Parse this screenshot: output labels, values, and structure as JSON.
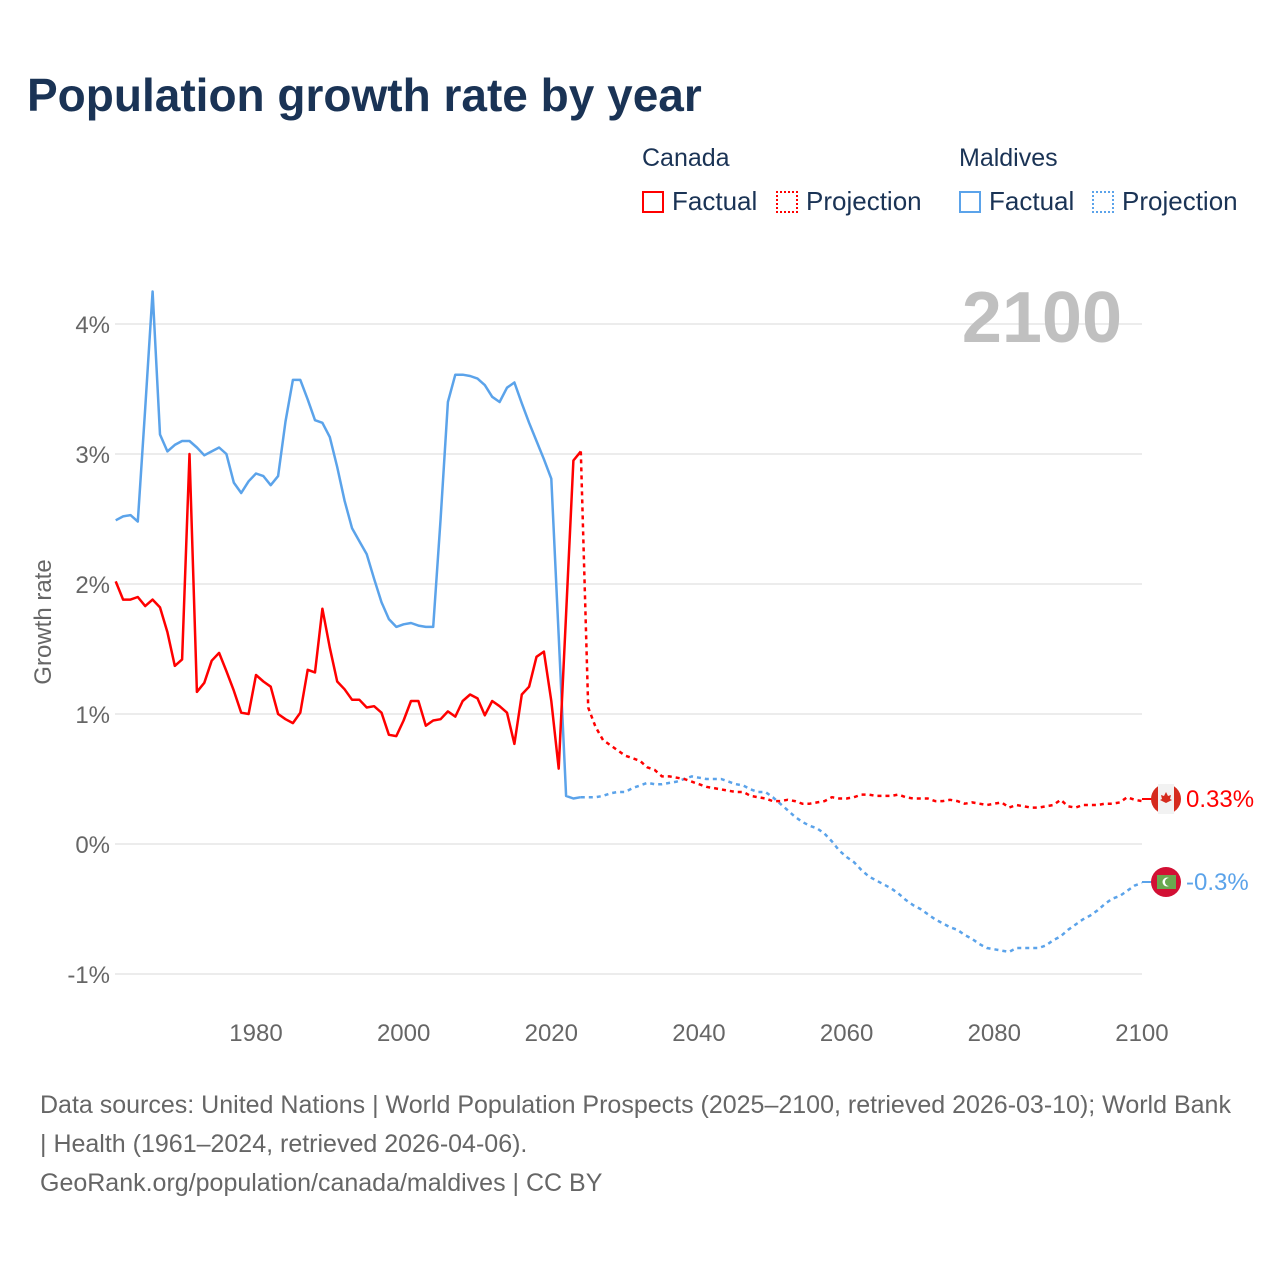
{
  "title": "Population growth rate by year",
  "legend": {
    "groups": [
      {
        "name": "Canada",
        "color": "#ff0000",
        "factual_label": "Factual",
        "projection_label": "Projection"
      },
      {
        "name": "Maldives",
        "color": "#5ba3ea",
        "factual_label": "Factual",
        "projection_label": "Projection"
      }
    ]
  },
  "year_display": "2100",
  "end_labels": {
    "canada": "0.33%",
    "maldives": "-0.3%"
  },
  "footer": {
    "sources": "Data sources: United Nations | World Population Prospects (2025–2100, retrieved 2026-03-10); World Bank | Health (1961–2024, retrieved 2026-04-06).",
    "link": "GeoRank.org/population/canada/maldives | CC BY"
  },
  "chart_data": {
    "type": "line",
    "title": "Population growth rate by year",
    "xlabel": "",
    "ylabel": "Growth rate",
    "xlim": [
      1961,
      2100
    ],
    "ylim": [
      -1.3,
      4.4
    ],
    "xticks": [
      1980,
      2000,
      2020,
      2040,
      2060,
      2080,
      2100
    ],
    "yticks": [
      -1,
      0,
      1,
      2,
      3,
      4
    ],
    "ytick_labels": [
      "-1%",
      "0%",
      "1%",
      "2%",
      "3%",
      "4%"
    ],
    "grid": true,
    "legend_position": "top-right",
    "series": [
      {
        "name": "Canada Factual",
        "color": "#ff0000",
        "dashed": false,
        "x_start": 1961,
        "values": [
          2.02,
          1.88,
          1.88,
          1.9,
          1.83,
          1.88,
          1.82,
          1.63,
          1.37,
          1.42,
          3.0,
          1.17,
          1.24,
          1.41,
          1.47,
          1.33,
          1.18,
          1.01,
          1.0,
          1.3,
          1.25,
          1.21,
          1.0,
          0.96,
          0.93,
          1.01,
          1.34,
          1.32,
          1.81,
          1.51,
          1.25,
          1.19,
          1.11,
          1.11,
          1.05,
          1.06,
          1.01,
          0.84,
          0.83,
          0.95,
          1.1,
          1.1,
          0.91,
          0.95,
          0.96,
          1.02,
          0.98,
          1.1,
          1.15,
          1.12,
          0.99,
          1.1,
          1.06,
          1.01,
          0.77,
          1.15,
          1.21,
          1.44,
          1.48,
          1.1,
          0.58,
          1.77,
          2.95,
          3.02
        ]
      },
      {
        "name": "Canada Projection",
        "color": "#ff0000",
        "dashed": true,
        "x_start": 2024,
        "values": [
          3.02,
          1.05,
          0.9,
          0.8,
          0.76,
          0.72,
          0.68,
          0.66,
          0.64,
          0.59,
          0.57,
          0.52,
          0.52,
          0.51,
          0.5,
          0.48,
          0.46,
          0.44,
          0.43,
          0.42,
          0.41,
          0.4,
          0.4,
          0.37,
          0.36,
          0.35,
          0.33,
          0.33,
          0.34,
          0.33,
          0.31,
          0.31,
          0.32,
          0.33,
          0.36,
          0.35,
          0.35,
          0.36,
          0.38,
          0.38,
          0.37,
          0.37,
          0.37,
          0.38,
          0.36,
          0.35,
          0.35,
          0.35,
          0.33,
          0.33,
          0.34,
          0.33,
          0.31,
          0.32,
          0.31,
          0.3,
          0.31,
          0.32,
          0.28,
          0.3,
          0.29,
          0.28,
          0.28,
          0.29,
          0.3,
          0.34,
          0.29,
          0.28,
          0.3,
          0.3,
          0.3,
          0.31,
          0.31,
          0.32,
          0.36,
          0.34,
          0.33
        ]
      },
      {
        "name": "Maldives Factual",
        "color": "#5ba3ea",
        "dashed": false,
        "x_start": 1961,
        "values": [
          2.49,
          2.52,
          2.53,
          2.48,
          3.35,
          4.25,
          3.15,
          3.02,
          3.07,
          3.1,
          3.1,
          3.05,
          2.99,
          3.02,
          3.05,
          3.0,
          2.78,
          2.7,
          2.79,
          2.85,
          2.83,
          2.76,
          2.83,
          3.25,
          3.57,
          3.57,
          3.42,
          3.26,
          3.24,
          3.13,
          2.9,
          2.64,
          2.43,
          2.33,
          2.23,
          2.04,
          1.86,
          1.73,
          1.67,
          1.69,
          1.7,
          1.68,
          1.67,
          1.67,
          2.5,
          3.4,
          3.61,
          3.61,
          3.6,
          3.58,
          3.53,
          3.44,
          3.4,
          3.51,
          3.55,
          3.39,
          3.24,
          3.1,
          2.96,
          2.81,
          1.6,
          0.37,
          0.35,
          0.36
        ]
      },
      {
        "name": "Maldives Projection",
        "color": "#5ba3ea",
        "dashed": true,
        "x_start": 2024,
        "values": [
          0.36,
          0.36,
          0.36,
          0.37,
          0.39,
          0.4,
          0.4,
          0.43,
          0.45,
          0.47,
          0.46,
          0.46,
          0.47,
          0.48,
          0.5,
          0.52,
          0.51,
          0.5,
          0.5,
          0.5,
          0.48,
          0.46,
          0.45,
          0.42,
          0.4,
          0.4,
          0.36,
          0.31,
          0.26,
          0.21,
          0.17,
          0.14,
          0.12,
          0.08,
          0.02,
          -0.05,
          -0.1,
          -0.14,
          -0.2,
          -0.25,
          -0.28,
          -0.31,
          -0.34,
          -0.38,
          -0.43,
          -0.47,
          -0.5,
          -0.54,
          -0.58,
          -0.61,
          -0.64,
          -0.66,
          -0.7,
          -0.73,
          -0.77,
          -0.8,
          -0.81,
          -0.82,
          -0.83,
          -0.8,
          -0.8,
          -0.8,
          -0.8,
          -0.78,
          -0.74,
          -0.71,
          -0.66,
          -0.62,
          -0.58,
          -0.55,
          -0.51,
          -0.46,
          -0.42,
          -0.4,
          -0.36,
          -0.32,
          -0.3
        ]
      }
    ]
  }
}
